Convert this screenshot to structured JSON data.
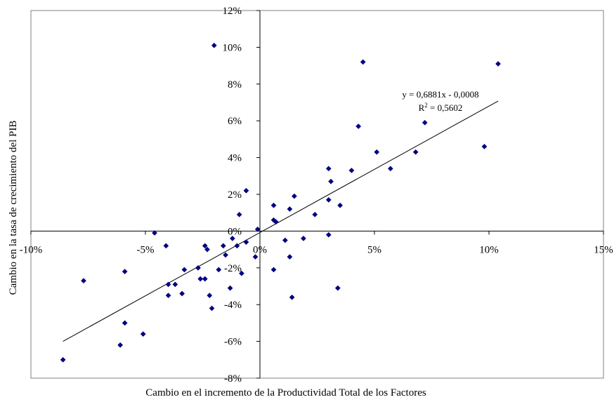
{
  "chart_data": {
    "type": "scatter",
    "xlabel": "Cambio en el  incremento de la Productividad Total de los Factores",
    "ylabel": "Cambio en la tasa de crecimiento del PIB",
    "xlim": [
      -0.1,
      0.15
    ],
    "ylim": [
      -0.08,
      0.12
    ],
    "x_ticks": [
      -0.1,
      -0.05,
      0.0,
      0.05,
      0.1,
      0.15
    ],
    "x_tick_labels": [
      "-10%",
      "-5%",
      "0%",
      "5%",
      "10%",
      "15%"
    ],
    "y_ticks": [
      -0.08,
      -0.06,
      -0.04,
      -0.02,
      0.0,
      0.02,
      0.04,
      0.06,
      0.08,
      0.1,
      0.12
    ],
    "y_tick_labels": [
      "-8%",
      "-6%",
      "-4%",
      "-2%",
      "0%",
      "2%",
      "4%",
      "6%",
      "8%",
      "10%",
      "12%"
    ],
    "grid": false,
    "marker_color": "#000080",
    "trendline": {
      "slope": 0.6881,
      "intercept": -0.0008,
      "x_range": [
        -0.086,
        0.104
      ],
      "equation_text": "y = 0,6881x - 0,0008",
      "r2_label": "R",
      "r2_superscript": "2",
      "r2_value_text": " = 0,5602"
    },
    "series": [
      {
        "points": [
          [
            -0.086,
            -0.07
          ],
          [
            -0.077,
            -0.027
          ],
          [
            -0.061,
            -0.062
          ],
          [
            -0.059,
            -0.05
          ],
          [
            -0.059,
            -0.022
          ],
          [
            -0.051,
            -0.056
          ],
          [
            -0.046,
            -0.001
          ],
          [
            -0.041,
            -0.008
          ],
          [
            -0.04,
            -0.035
          ],
          [
            -0.04,
            -0.029
          ],
          [
            -0.037,
            -0.029
          ],
          [
            -0.034,
            -0.034
          ],
          [
            -0.033,
            -0.021
          ],
          [
            -0.027,
            -0.02
          ],
          [
            -0.026,
            -0.026
          ],
          [
            -0.024,
            -0.008
          ],
          [
            -0.024,
            -0.026
          ],
          [
            -0.023,
            -0.01
          ],
          [
            -0.022,
            -0.035
          ],
          [
            -0.021,
            -0.042
          ],
          [
            -0.02,
            0.101
          ],
          [
            -0.018,
            -0.021
          ],
          [
            -0.016,
            -0.008
          ],
          [
            -0.015,
            -0.013
          ],
          [
            -0.013,
            -0.031
          ],
          [
            -0.012,
            -0.004
          ],
          [
            -0.01,
            -0.008
          ],
          [
            -0.009,
            0.009
          ],
          [
            -0.008,
            -0.023
          ],
          [
            -0.006,
            0.022
          ],
          [
            -0.006,
            -0.006
          ],
          [
            -0.002,
            -0.014
          ],
          [
            -0.001,
            0.001
          ],
          [
            0.006,
            0.014
          ],
          [
            0.006,
            0.006
          ],
          [
            0.007,
            0.005
          ],
          [
            0.006,
            -0.021
          ],
          [
            0.011,
            -0.005
          ],
          [
            0.013,
            0.012
          ],
          [
            0.013,
            -0.014
          ],
          [
            0.014,
            -0.036
          ],
          [
            0.015,
            0.019
          ],
          [
            0.019,
            -0.004
          ],
          [
            0.024,
            0.009
          ],
          [
            0.03,
            0.034
          ],
          [
            0.03,
            0.017
          ],
          [
            0.031,
            0.027
          ],
          [
            0.03,
            -0.002
          ],
          [
            0.034,
            -0.031
          ],
          [
            0.035,
            0.014
          ],
          [
            0.04,
            0.033
          ],
          [
            0.043,
            0.057
          ],
          [
            0.045,
            0.092
          ],
          [
            0.051,
            0.043
          ],
          [
            0.057,
            0.034
          ],
          [
            0.068,
            0.043
          ],
          [
            0.072,
            0.059
          ],
          [
            0.098,
            0.046
          ],
          [
            0.104,
            0.091
          ]
        ]
      }
    ]
  }
}
